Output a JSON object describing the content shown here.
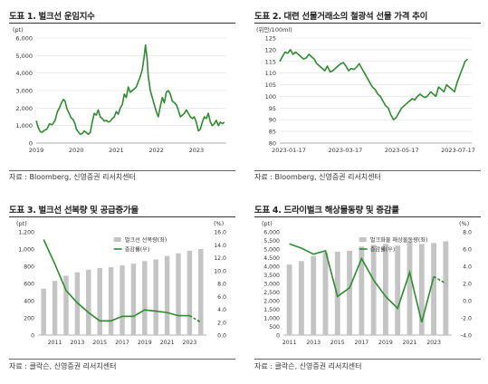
{
  "colors": {
    "green": "#2e8b2e",
    "bar": "#c4c4c4",
    "grid": "#dddddd",
    "axis": "#999999"
  },
  "panels": [
    {
      "title": "도표 1. 벌크선 운임지수",
      "source": "자료 : Bloomberg, 신영증권 리서치센터",
      "unit_left": "(pt)",
      "chart_data": {
        "type": "line",
        "x_ticks": [
          "2019",
          "2020",
          "2021",
          "2022",
          "2023"
        ],
        "y_ticks": [
          "0",
          "1,000",
          "2,000",
          "3,000",
          "4,000",
          "5,000",
          "6,000"
        ],
        "ylim": [
          0,
          6000
        ],
        "xlim": [
          2019.0,
          2023.75
        ],
        "series": [
          {
            "x": [
              2019.0,
              2019.05,
              2019.1,
              2019.15,
              2019.2,
              2019.27,
              2019.33,
              2019.4,
              2019.47,
              2019.53,
              2019.58,
              2019.63,
              2019.68,
              2019.72,
              2019.77,
              2019.82,
              2019.87,
              2019.92,
              2019.97,
              2020.0,
              2020.05,
              2020.1,
              2020.15,
              2020.2,
              2020.25,
              2020.3,
              2020.35,
              2020.4,
              2020.45,
              2020.5,
              2020.55,
              2020.6,
              2020.65,
              2020.7,
              2020.75,
              2020.8,
              2020.85,
              2020.9,
              2020.95,
              2021.0,
              2021.05,
              2021.1,
              2021.15,
              2021.2,
              2021.25,
              2021.3,
              2021.35,
              2021.4,
              2021.45,
              2021.5,
              2021.55,
              2021.6,
              2021.65,
              2021.7,
              2021.73,
              2021.77,
              2021.8,
              2021.85,
              2021.9,
              2021.95,
              2022.0,
              2022.05,
              2022.1,
              2022.15,
              2022.2,
              2022.25,
              2022.3,
              2022.35,
              2022.4,
              2022.45,
              2022.5,
              2022.55,
              2022.6,
              2022.65,
              2022.7,
              2022.75,
              2022.8,
              2022.85,
              2022.9,
              2022.95,
              2023.0,
              2023.05,
              2023.1,
              2023.15,
              2023.2,
              2023.25,
              2023.3,
              2023.35,
              2023.4,
              2023.45,
              2023.5,
              2023.55,
              2023.6,
              2023.65,
              2023.7
            ],
            "y": [
              1280,
              900,
              650,
              620,
              720,
              800,
              1100,
              1050,
              1300,
              1800,
              2000,
              2300,
              2500,
              2400,
              1950,
              1700,
              1450,
              1350,
              1100,
              800,
              650,
              500,
              550,
              700,
              600,
              500,
              600,
              1200,
              1700,
              1600,
              1900,
              1500,
              1400,
              1250,
              1300,
              1200,
              1250,
              1400,
              1500,
              1800,
              1650,
              2000,
              2200,
              2800,
              2600,
              3200,
              2900,
              3000,
              3100,
              3200,
              3500,
              3800,
              4200,
              5000,
              5600,
              4800,
              3800,
              3000,
              2600,
              2200,
              1800,
              1500,
              2100,
              2600,
              2300,
              2900,
              3000,
              2800,
              2400,
              2300,
              2200,
              1900,
              1500,
              1600,
              1700,
              1900,
              1700,
              1500,
              1400,
              1500,
              1200,
              700,
              800,
              1200,
              1500,
              1400,
              1700,
              1200,
              1000,
              1100,
              1300,
              1000,
              1200,
              1100,
              1200
            ],
            "color": "#2e8b2e"
          }
        ]
      }
    },
    {
      "title": "도표 2. 대련 선물거래소의 철광석 선물 가격 추이",
      "source": "자료 : Bloomberg, 신영증권 리서치센터",
      "unit_left": "(위안/100ml)",
      "chart_data": {
        "type": "line",
        "x_ticks": [
          "2023-01-17",
          "2023-03-17",
          "2023-05-17",
          "2023-07-17"
        ],
        "y_ticks": [
          "80",
          "85",
          "90",
          "95",
          "100",
          "105",
          "110",
          "115",
          "120",
          "125"
        ],
        "ylim": [
          80,
          125
        ],
        "xlim": [
          0,
          7.25
        ],
        "series": [
          {
            "x": [
              0,
              0.1,
              0.2,
              0.3,
              0.4,
              0.5,
              0.6,
              0.7,
              0.8,
              0.9,
              1.0,
              1.1,
              1.2,
              1.3,
              1.4,
              1.5,
              1.6,
              1.7,
              1.8,
              1.9,
              2.0,
              2.1,
              2.2,
              2.3,
              2.4,
              2.5,
              2.6,
              2.7,
              2.8,
              2.9,
              3.0,
              3.1,
              3.2,
              3.3,
              3.4,
              3.5,
              3.6,
              3.7,
              3.8,
              3.9,
              4.0,
              4.1,
              4.2,
              4.3,
              4.4,
              4.5,
              4.6,
              4.7,
              4.8,
              4.9,
              5.0,
              5.1,
              5.2,
              5.3,
              5.4,
              5.5,
              5.6,
              5.7,
              5.8,
              5.9,
              6.0,
              6.1,
              6.2,
              6.3,
              6.4,
              6.5,
              6.6,
              6.7,
              6.8,
              6.9,
              7.0,
              7.1
            ],
            "y": [
              115,
              117,
              119,
              118.5,
              120,
              118,
              119,
              118,
              117,
              116,
              116.5,
              118,
              117,
              116,
              114,
              113,
              112,
              111,
              113,
              110.5,
              111,
              112,
              113,
              114,
              114.5,
              113,
              111,
              112,
              111.5,
              112.5,
              114,
              112,
              110,
              108,
              106,
              104,
              103,
              101,
              100,
              98,
              96,
              95,
              92,
              90,
              91,
              93,
              95,
              96,
              97,
              98,
              99,
              98.5,
              100,
              101,
              100,
              99.5,
              100.5,
              102,
              101,
              100,
              104,
              103,
              102,
              105,
              104,
              103,
              102,
              106,
              109,
              112,
              115,
              116
            ]
          }
        ]
      }
    },
    {
      "title": "도표 3. 벌크선 선복량 및 공급증가율",
      "source": "자료 : 클락슨, 신영증권 리서치센터",
      "unit_left": "(pt)",
      "unit_right": "(%)",
      "chart_data": {
        "type": "bar",
        "categories": [
          "2010",
          "2011",
          "2012",
          "2013",
          "2014",
          "2015",
          "2016",
          "2017",
          "2018",
          "2019",
          "2020",
          "2021",
          "2022",
          "2023",
          "2024"
        ],
        "x_ticks": [
          "2011",
          "2013",
          "2015",
          "2017",
          "2019",
          "2021",
          "2023"
        ],
        "y_ticks_left": [
          "0",
          "200",
          "400",
          "600",
          "800",
          "1,000",
          "1,200"
        ],
        "y_ticks_right": [
          "0.0",
          "2.0",
          "4.0",
          "6.0",
          "8.0",
          "10.0",
          "12.0",
          "14.0",
          "16.0"
        ],
        "ylim_left": [
          0,
          1200
        ],
        "ylim_right": [
          0,
          16
        ],
        "series": [
          {
            "name": "벌크선 선복량(좌)",
            "axis": "left",
            "type": "bar",
            "values": [
              540,
              630,
              690,
              730,
              760,
              780,
              790,
              810,
              830,
              860,
              880,
              920,
              950,
              980,
              1000
            ]
          },
          {
            "name": "증감률(우)",
            "axis": "right",
            "type": "line",
            "values": [
              14.8,
              11.0,
              6.9,
              5.0,
              3.5,
              2.2,
              2.2,
              2.9,
              2.9,
              3.9,
              3.7,
              3.5,
              3.0,
              3.0,
              2.0
            ],
            "forecast_from": 13
          }
        ]
      }
    },
    {
      "title": "도표 4. 드라이벌크 해상물동량 및 증감률",
      "source": "자료 : 클락슨, 신영증권 리서치센터",
      "unit_left": "(pt)",
      "unit_right": "(%)",
      "chart_data": {
        "type": "bar",
        "categories": [
          "2011",
          "2012",
          "2013",
          "2014",
          "2015",
          "2016",
          "2017",
          "2018",
          "2019",
          "2020",
          "2021",
          "2022",
          "2023",
          "2024"
        ],
        "x_ticks": [
          "2011",
          "2013",
          "2015",
          "2017",
          "2019",
          "2021",
          "2023"
        ],
        "y_ticks_left": [
          "0",
          "500",
          "1,000",
          "1,500",
          "2,000",
          "2,500",
          "3,000",
          "3,500",
          "4,000",
          "4,500",
          "5,000",
          "5,500",
          "6,000"
        ],
        "y_ticks_right": [
          "-4.0",
          "-2.0",
          "0.0",
          "2.0",
          "4.0",
          "6.0",
          "8.0"
        ],
        "ylim_left": [
          0,
          6000
        ],
        "ylim_right": [
          -4,
          8
        ],
        "series": [
          {
            "name": "벌크화물 해상물동량(좌)",
            "axis": "left",
            "type": "bar",
            "values": [
              4100,
              4300,
              4600,
              4800,
              4850,
              4900,
              5150,
              5250,
              5300,
              5200,
              5450,
              5300,
              5350,
              5450
            ]
          },
          {
            "name": "증감률(우)",
            "axis": "right",
            "type": "line",
            "values": [
              6.6,
              6.1,
              5.4,
              5.8,
              0.5,
              1.5,
              4.9,
              2.4,
              0.5,
              -0.9,
              3.3,
              -2.5,
              2.8,
              2.0
            ],
            "forecast_from": 12
          }
        ]
      }
    }
  ]
}
